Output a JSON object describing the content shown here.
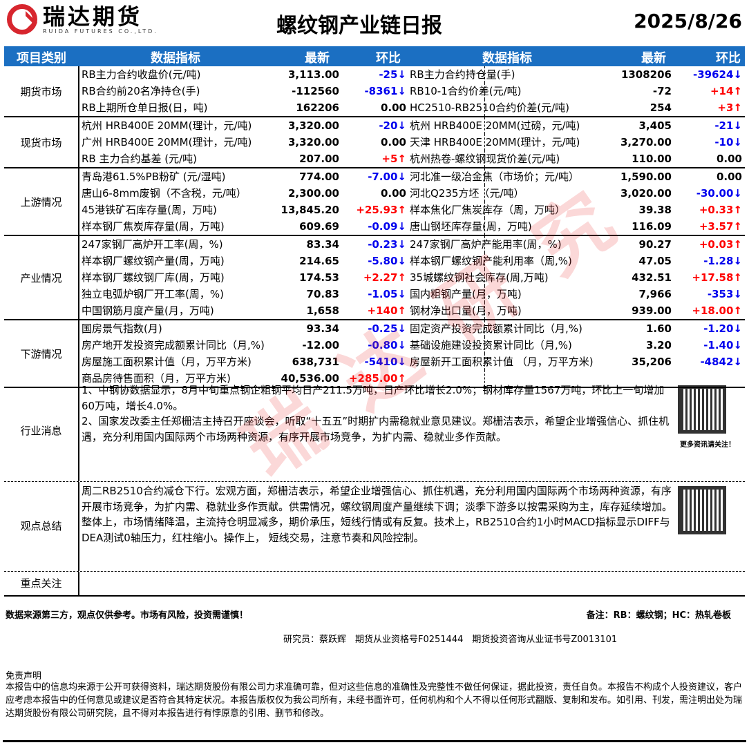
{
  "header": {
    "brand": "瑞达期货",
    "brand_en": "RUIDA FUTURES CO.,LTD.",
    "title": "螺纹钢产业链日报",
    "date": "2025/8/26"
  },
  "columns": {
    "category": "项目类别",
    "indicator": "数据指标",
    "latest": "最新",
    "change": "环比"
  },
  "colors": {
    "up": "#ff0000",
    "down": "#0000ee",
    "header_bg": "#1b6fc2"
  },
  "watermark": "瑞达研究",
  "sections": [
    {
      "category": "期货市场",
      "rows": [
        [
          "RB主力合约收盘价(元/吨)",
          "3,113.00",
          "-25↓",
          "RB主力合约持仓量(手)",
          "1308206",
          "-39624↓"
        ],
        [
          "RB合约前20名净持仓(手)",
          "-112560",
          "-8361↓",
          "RB10-1合约价差(元/吨)",
          "-72",
          "+14↑"
        ],
        [
          "RB上期所仓单日报(日，吨)",
          "162206",
          "0.00",
          "HC2510-RB2510合约价差(元/吨)",
          "254",
          "+3↑"
        ]
      ]
    },
    {
      "category": "现货市场",
      "rows": [
        [
          "杭州 HRB400E 20MM(理计，元/吨)",
          "3,320.00",
          "-20↓",
          "杭州 HRB400E 20MM(过磅，元/吨)",
          "3,405",
          "-21↓"
        ],
        [
          "广州 HRB400E 20MM(理计，元/吨)",
          "3,320.00",
          "0.00",
          "天津 HRB400E 20MM(理计，元/吨)",
          "3,270.00",
          "-10↓"
        ],
        [
          "RB 主力合约基差 (元/吨)",
          "207.00",
          "+5↑",
          "杭州热卷-螺纹钢现货价差(元/吨)",
          "110.00",
          "0.00"
        ]
      ]
    },
    {
      "category": "上游情况",
      "rows": [
        [
          "青岛港61.5%PB粉矿 (元/湿吨)",
          "774.00",
          "-7.00↓",
          "河北准一级冶金焦（市场价；元/吨）",
          "1,590.00",
          "0.00"
        ],
        [
          "唐山6-8mm废钢（不含税，元/吨）",
          "2,300.00",
          "0.00",
          "河北Q235方坯（元/吨）",
          "3,020.00",
          "-30.00↓"
        ],
        [
          "45港铁矿石库存量(周，万吨)",
          "13,845.20",
          "+25.93↑",
          "样本焦化厂焦炭库存（周，万吨）",
          "39.38",
          "+0.33↑"
        ],
        [
          "样本钢厂焦炭库存量(周，万吨)",
          "609.69",
          "-0.09↓",
          "唐山钢坯库存量(周，万吨)",
          "116.09",
          "+3.57↑"
        ]
      ]
    },
    {
      "category": "产业情况",
      "rows": [
        [
          "247家钢厂高炉开工率(周，%)",
          "83.34",
          "-0.23↓",
          "247家钢厂高炉产能用率(周，%)",
          "90.27",
          "+0.03↑"
        ],
        [
          "样本钢厂螺纹钢产量(周，万吨)",
          "214.65",
          "-5.80↓",
          "样本钢厂螺纹钢产能利用率（周,%)",
          "47.05",
          "-1.28↓"
        ],
        [
          "样本钢厂螺纹钢厂库(周，万吨)",
          "174.53",
          "+2.27↑",
          "35城螺纹钢社会库存(周,万吨)",
          "432.51",
          "+17.58↑"
        ],
        [
          "独立电弧炉钢厂开工率(周，%)",
          "70.83",
          "-1.05↓",
          "国内粗钢产量(月，万吨)",
          "7,966",
          "-353↓"
        ],
        [
          "中国钢筋月度产量(月，万吨)",
          "1,658",
          "+140↑",
          "钢材净出口量(月，万吨)",
          "939.00",
          "+18.00↑"
        ]
      ]
    },
    {
      "category": "下游情况",
      "rows": [
        [
          "国房景气指数(月)",
          "93.34",
          "-0.25↓",
          "固定资产投资完成额累计同比（月,%)",
          "1.60",
          "-1.20↓"
        ],
        [
          "房产地开发投资完成额累计同比（月,%)",
          "-12.00",
          "-0.80↓",
          "基础设施建设投资累计同比（月,%)",
          "3.20",
          "-1.40↓"
        ],
        [
          "房屋施工面积累计值（月，万平方米)",
          "638,731",
          "-5410↓",
          "房屋新开工面积累计值 （月，万平方米)",
          "35,206",
          "-4842↓"
        ],
        [
          "商品房待售面积（月，万平方米)",
          "40,536.00",
          "+285.00↑",
          "",
          "",
          ""
        ]
      ]
    }
  ],
  "news": {
    "category": "行业消息",
    "text": "1、中钢协数据显示，8月中旬重点钢企粗钢平均日产211.5万吨，日产环比增长2.0%；钢材库存量1567万吨，环比上一旬增加60万吨，增长4.0%。\n2、国家发改委主任郑栅洁主持召开座谈会，听取“十五五”时期扩内需稳就业意见建议。郑栅洁表示，希望企业增强信心、抓住机遇，充分利用国内国际两个市场两种资源，有序开展市场竞争，为扩内需、稳就业多作贡献。",
    "qr_note": "更多资讯请关注！"
  },
  "view": {
    "category": "观点总结",
    "text": "周二RB2510合约减仓下行。宏观方面，郑栅洁表示，希望企业增强信心、抓住机遇，充分利用国内国际两个市场两种资源，有序开展市场竞争，为扩内需、稳就业多作贡献。供需情况，螺纹钢周度产量继续下调；淡季下游多以按需采购为主，库存延续增加。整体上，市场情绪降温，主流持仓明显减多，期价承压，短线行情或有反复。技术上，RB2510合约1小时MACD指标显示DIFF与DEA测试0轴压力，红柱缩小。操作上， 短线交易，注意节奏和风险控制。"
  },
  "focus": {
    "category": "重点关注",
    "text": ""
  },
  "footer": {
    "risk": "数据来源第三方，观点仅供参考。市场有风险，投资需谨慎！",
    "note": "备注：RB：螺纹钢；HC：热轧卷板",
    "analyst": "研究员：蔡跃辉　期货从业资格号F0251444　期货投资咨询从业证书号Z0013101",
    "disclaimer_title": "免责声明",
    "disclaimer": "本报告中的信息均来源于公开可获得资料，瑞达期货股份有限公司力求准确可靠，但对这些信息的准确性及完整性不做任何保证，据此投资，责任自负。本报告不构成个人投资建议，客户应考虑本报告中的任何意见或建议是否符合其特定状况。本报告版权仅为我公司所有，未经书面许可，任何机构和个人不得以任何形式翻版、复制和发布。如引用、刊发，需注明出处为瑞达期货股份有限公司研究院，且不得对本报告进行有悖原意的引用、删节和修改。"
  }
}
